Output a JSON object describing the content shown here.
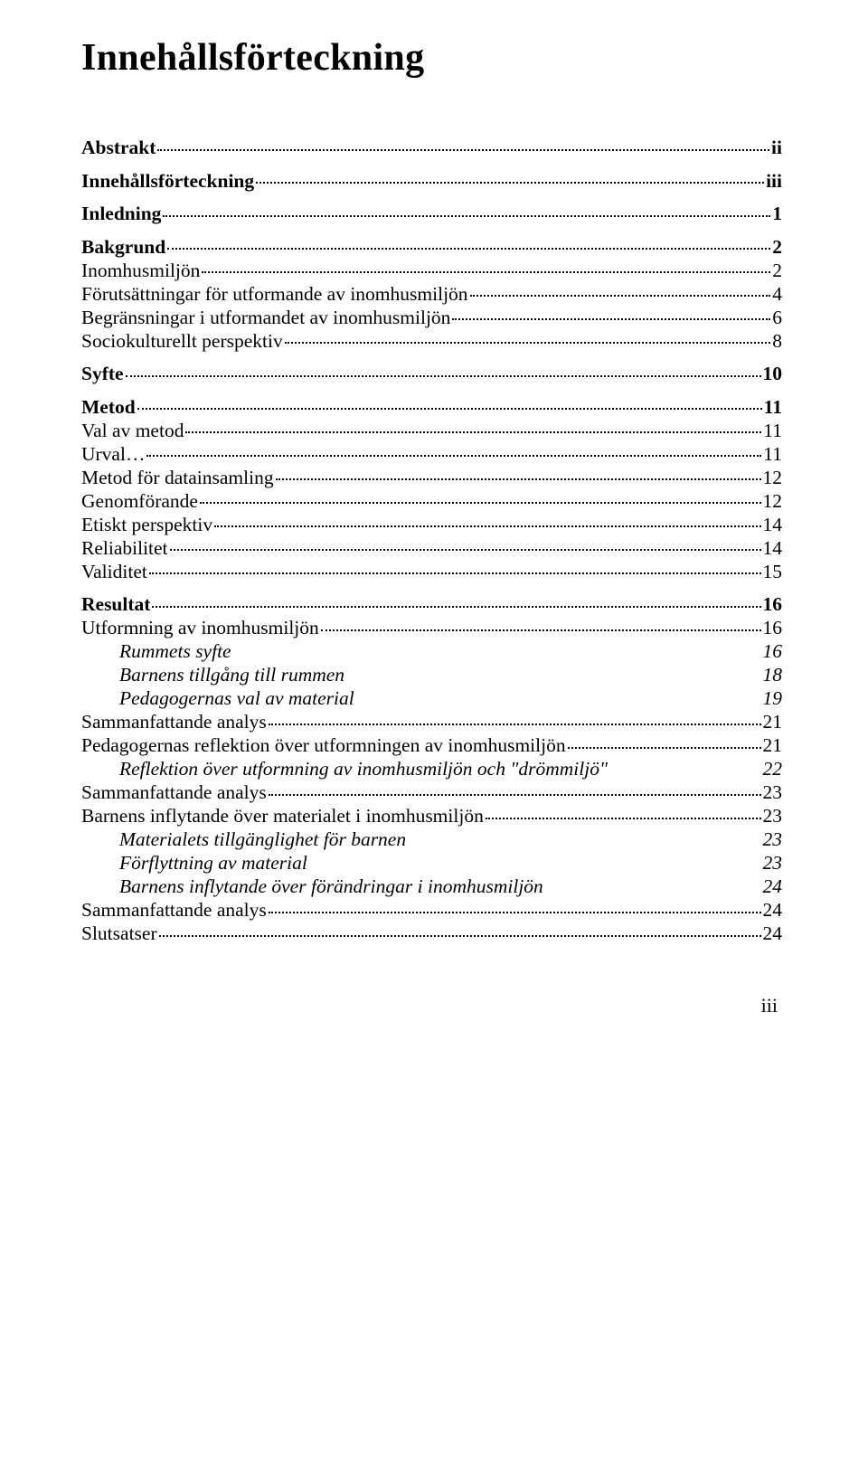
{
  "title": "Innehållsförteckning",
  "footer_page": "iii",
  "entries": [
    {
      "label": "Abstrakt",
      "page": "ii",
      "indent": 0,
      "bold": true,
      "italic": false,
      "dots": true,
      "gap": false
    },
    {
      "label": "Innehållsförteckning",
      "page": "iii",
      "indent": 0,
      "bold": true,
      "italic": false,
      "dots": true,
      "gap": true
    },
    {
      "label": "Inledning",
      "page": "1",
      "indent": 0,
      "bold": true,
      "italic": false,
      "dots": true,
      "gap": true
    },
    {
      "label": "Bakgrund",
      "page": "2",
      "indent": 0,
      "bold": true,
      "italic": false,
      "dots": true,
      "gap": true
    },
    {
      "label": "Inomhusmiljön",
      "page": "2",
      "indent": 1,
      "bold": false,
      "italic": false,
      "dots": true,
      "gap": false
    },
    {
      "label": "Förutsättningar för utformande av inomhusmiljön",
      "page": "4",
      "indent": 1,
      "bold": false,
      "italic": false,
      "dots": true,
      "gap": false
    },
    {
      "label": "Begränsningar i utformandet av inomhusmiljön",
      "page": "6",
      "indent": 1,
      "bold": false,
      "italic": false,
      "dots": true,
      "gap": false
    },
    {
      "label": "Sociokulturellt perspektiv",
      "page": "8",
      "indent": 1,
      "bold": false,
      "italic": false,
      "dots": true,
      "gap": false
    },
    {
      "label": "Syfte",
      "page": "10",
      "indent": 0,
      "bold": true,
      "italic": false,
      "dots": true,
      "gap": true
    },
    {
      "label": "Metod",
      "page": "11",
      "indent": 0,
      "bold": true,
      "italic": false,
      "dots": true,
      "gap": true
    },
    {
      "label": "Val av metod",
      "page": "11",
      "indent": 1,
      "bold": false,
      "italic": false,
      "dots": true,
      "gap": false
    },
    {
      "label": "Urval…",
      "page": "11",
      "indent": 1,
      "bold": false,
      "italic": false,
      "dots": true,
      "gap": false
    },
    {
      "label": "Metod för datainsamling",
      "page": "12",
      "indent": 1,
      "bold": false,
      "italic": false,
      "dots": true,
      "gap": false
    },
    {
      "label": "Genomförande",
      "page": "12",
      "indent": 1,
      "bold": false,
      "italic": false,
      "dots": true,
      "gap": false
    },
    {
      "label": "Etiskt perspektiv",
      "page": "14",
      "indent": 1,
      "bold": false,
      "italic": false,
      "dots": true,
      "gap": false
    },
    {
      "label": "Reliabilitet",
      "page": "14",
      "indent": 1,
      "bold": false,
      "italic": false,
      "dots": true,
      "gap": false
    },
    {
      "label": "Validitet",
      "page": "15",
      "indent": 1,
      "bold": false,
      "italic": false,
      "dots": true,
      "gap": false
    },
    {
      "label": "Resultat",
      "page": "16",
      "indent": 0,
      "bold": true,
      "italic": false,
      "dots": true,
      "gap": true
    },
    {
      "label": "Utformning av inomhusmiljön",
      "page": "16",
      "indent": 1,
      "bold": false,
      "italic": false,
      "dots": true,
      "gap": false
    },
    {
      "label": "Rummets syfte",
      "page": "16",
      "indent": 2,
      "bold": false,
      "italic": true,
      "dots": false,
      "gap": false
    },
    {
      "label": "Barnens tillgång till rummen",
      "page": "18",
      "indent": 2,
      "bold": false,
      "italic": true,
      "dots": false,
      "gap": false
    },
    {
      "label": "Pedagogernas val av material",
      "page": "19",
      "indent": 2,
      "bold": false,
      "italic": true,
      "dots": false,
      "gap": false
    },
    {
      "label": "Sammanfattande analys",
      "page": "21",
      "indent": 1,
      "bold": false,
      "italic": false,
      "dots": true,
      "gap": false
    },
    {
      "label": "Pedagogernas reflektion över utformningen av inomhusmiljön",
      "page": "21",
      "indent": 1,
      "bold": false,
      "italic": false,
      "dots": true,
      "gap": false
    },
    {
      "label": "Reflektion över utformning av inomhusmiljön och \"drömmiljö\"",
      "page": "22",
      "indent": 2,
      "bold": false,
      "italic": true,
      "dots": false,
      "gap": false
    },
    {
      "label": "Sammanfattande analys",
      "page": "23",
      "indent": 1,
      "bold": false,
      "italic": false,
      "dots": true,
      "gap": false
    },
    {
      "label": "Barnens inflytande över materialet i inomhusmiljön",
      "page": "23",
      "indent": 1,
      "bold": false,
      "italic": false,
      "dots": true,
      "gap": false
    },
    {
      "label": "Materialets tillgänglighet för barnen",
      "page": "23",
      "indent": 2,
      "bold": false,
      "italic": true,
      "dots": false,
      "gap": false
    },
    {
      "label": "Förflyttning av material",
      "page": "23",
      "indent": 2,
      "bold": false,
      "italic": true,
      "dots": false,
      "gap": false
    },
    {
      "label": "Barnens inflytande över förändringar i inomhusmiljön",
      "page": "24",
      "indent": 2,
      "bold": false,
      "italic": true,
      "dots": false,
      "gap": false
    },
    {
      "label": "Sammanfattande analys",
      "page": "24",
      "indent": 1,
      "bold": false,
      "italic": false,
      "dots": true,
      "gap": false
    },
    {
      "label": "Slutsatser",
      "page": "24",
      "indent": 1,
      "bold": false,
      "italic": false,
      "dots": true,
      "gap": false
    }
  ]
}
